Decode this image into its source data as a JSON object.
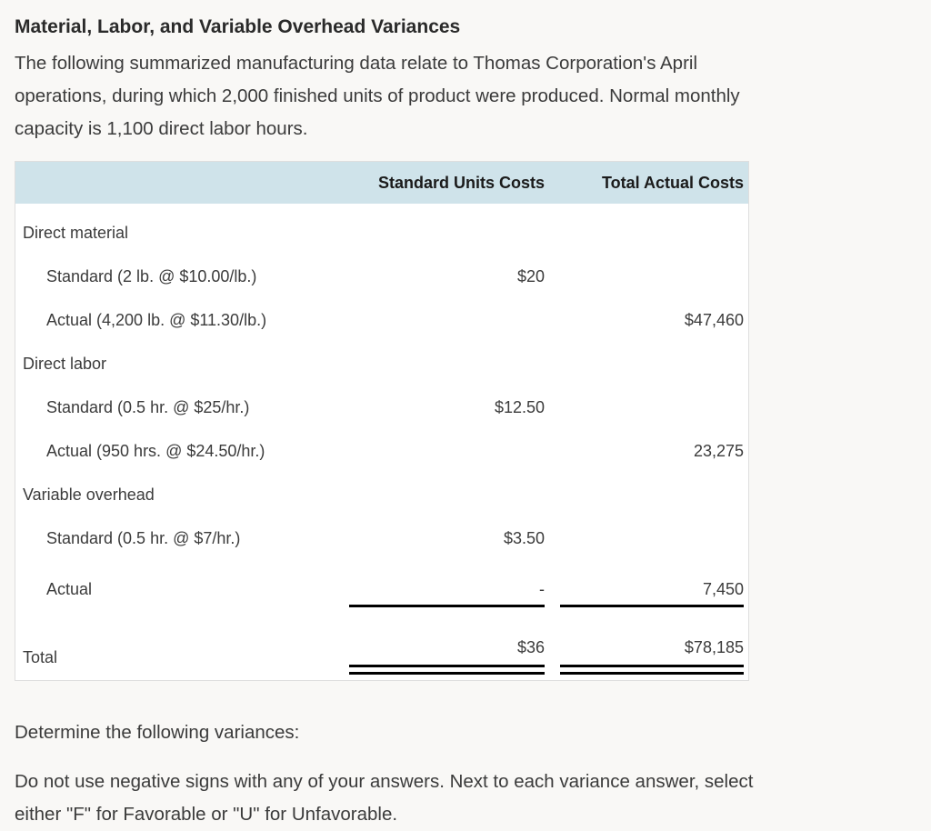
{
  "page": {
    "title": "Material, Labor, and Variable Overhead Variances",
    "intro_lines": [
      "The following summarized manufacturing data relate to Thomas Corporation's April",
      "operations, during which 2,000 finished units of product were produced. Normal monthly",
      "capacity is 1,100 direct labor hours."
    ],
    "footer": {
      "determine": "Determine the following variances:",
      "instruction_lines": [
        "Do not use negative signs with any of your answers. Next to each variance answer, select",
        "either \"F\" for Favorable or \"U\" for Unfavorable."
      ]
    }
  },
  "table": {
    "columns": [
      "Standard Units Costs",
      "Total Actual Costs"
    ],
    "rows": [
      {
        "label": "Direct material",
        "indent": false,
        "std": "",
        "actual": "",
        "rule": ""
      },
      {
        "label": "Standard (2 lb. @ $10.00/lb.)",
        "indent": true,
        "std": "$20",
        "actual": "",
        "rule": ""
      },
      {
        "label": "Actual (4,200 lb. @ $11.30/lb.)",
        "indent": true,
        "std": "",
        "actual": "$47,460",
        "rule": ""
      },
      {
        "label": "Direct labor",
        "indent": false,
        "std": "",
        "actual": "",
        "rule": ""
      },
      {
        "label": "Standard (0.5 hr. @ $25/hr.)",
        "indent": true,
        "std": "$12.50",
        "actual": "",
        "rule": ""
      },
      {
        "label": "Actual (950 hrs. @ $24.50/hr.)",
        "indent": true,
        "std": "",
        "actual": "23,275",
        "rule": ""
      },
      {
        "label": "Variable overhead",
        "indent": false,
        "std": "",
        "actual": "",
        "rule": ""
      },
      {
        "label": "Standard (0.5 hr. @ $7/hr.)",
        "indent": true,
        "std": "$3.50",
        "actual": "",
        "rule": ""
      },
      {
        "label": "Actual",
        "indent": true,
        "std": "-",
        "actual": "7,450",
        "rule": "single"
      },
      {
        "label": "Total",
        "indent": false,
        "std": "$36",
        "actual": "$78,185",
        "rule": "double"
      }
    ],
    "colors": {
      "header_bg": "#cfe3ea",
      "rule_color": "#000000",
      "card_border": "#dedede",
      "page_bg": "#f9f8f6",
      "text": "#3b3b3b"
    }
  }
}
